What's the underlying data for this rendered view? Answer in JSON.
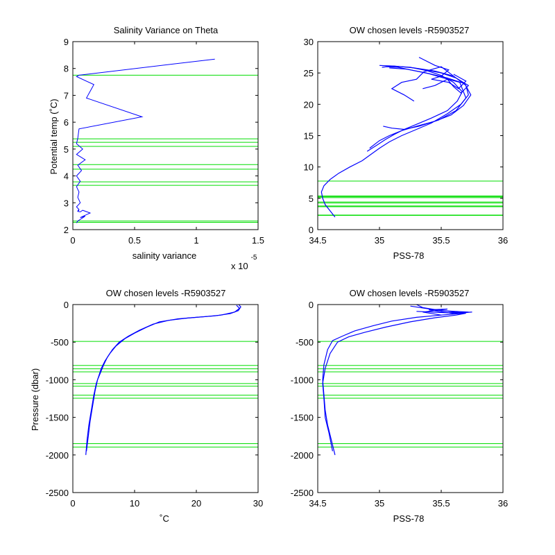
{
  "colors": {
    "profile": "#0000ff",
    "levels": "#00dd00",
    "axes": "#000000",
    "background": "#ffffff"
  },
  "chart_data": [
    {
      "id": "p1",
      "type": "line",
      "title": "Salinity Variance on Theta",
      "xlabel": "salinity variance",
      "ylabel": "Potential temp (˚C)",
      "xlim": [
        0,
        1.5
      ],
      "ylim": [
        2,
        9
      ],
      "xticks": [
        0,
        0.5,
        1,
        1.5
      ],
      "xtick_labels": [
        "0",
        "0.5",
        "1",
        "1.5"
      ],
      "yticks": [
        2,
        3,
        4,
        5,
        6,
        7,
        8,
        9
      ],
      "ytick_labels": [
        "2",
        "3",
        "4",
        "5",
        "6",
        "7",
        "8",
        "9"
      ],
      "x_multiplier_base": "x 10",
      "x_multiplier_exp": "-5",
      "hlines": [
        7.75,
        5.38,
        5.25,
        5.1,
        4.42,
        4.25,
        3.78,
        3.65,
        2.32,
        2.27
      ],
      "series": [
        {
          "x": [
            1.15,
            0.05,
            0.03,
            0.17,
            0.11,
            0.56,
            0.05,
            0.04,
            0.03,
            0.08,
            0.03,
            0.1,
            0.04,
            0.07,
            0.03,
            0.06,
            0.03,
            0.05,
            0.04,
            0.06,
            0.03,
            0.05,
            0.04,
            0.05,
            0.04,
            0.06,
            0.08,
            0.14,
            0.06,
            0.1,
            0.04,
            0.03
          ],
          "y": [
            8.35,
            7.75,
            7.7,
            7.4,
            6.9,
            6.2,
            5.75,
            5.4,
            5.2,
            5.0,
            4.8,
            4.6,
            4.4,
            4.2,
            4.0,
            3.8,
            3.6,
            3.4,
            3.2,
            3.0,
            2.85,
            2.75,
            2.7,
            2.72,
            2.68,
            2.66,
            2.72,
            2.62,
            2.45,
            2.5,
            2.32,
            2.25
          ]
        }
      ]
    },
    {
      "id": "p2",
      "type": "line",
      "title": "OW chosen levels -R5903527",
      "xlabel": "PSS-78",
      "ylabel": "",
      "xlim": [
        34.5,
        36
      ],
      "ylim": [
        0,
        30
      ],
      "xticks": [
        34.5,
        35,
        35.5,
        36
      ],
      "xtick_labels": [
        "34.5",
        "35",
        "35.5",
        "36"
      ],
      "yticks": [
        0,
        5,
        10,
        15,
        20,
        25,
        30
      ],
      "ytick_labels": [
        "0",
        "5",
        "10",
        "15",
        "20",
        "25",
        "30"
      ],
      "hlines": [
        7.75,
        5.38,
        5.25,
        5.1,
        4.42,
        4.25,
        3.78,
        3.65,
        2.32,
        2.27
      ],
      "series": [
        {
          "x": [
            34.64,
            34.6,
            34.56,
            34.54,
            34.53,
            34.55,
            34.6,
            34.67,
            34.76,
            34.86,
            34.93,
            35.0,
            35.08,
            35.18,
            35.3,
            35.42,
            35.55,
            35.66,
            35.72,
            35.7,
            35.6,
            35.45,
            35.28,
            35.12,
            35.0
          ],
          "y": [
            2.0,
            3.0,
            4.0,
            5.0,
            6.0,
            7.0,
            8.0,
            9.0,
            10.0,
            11.0,
            12.0,
            13.0,
            14.0,
            15.0,
            16.0,
            17.0,
            18.5,
            20.0,
            21.5,
            23.0,
            24.5,
            25.3,
            25.8,
            26.1,
            26.2
          ]
        },
        {
          "x": [
            34.9,
            34.98,
            35.05,
            35.12,
            35.2,
            35.3,
            35.42,
            35.55,
            35.63,
            35.67,
            35.6,
            35.5,
            35.38,
            35.25,
            35.1,
            35.02
          ],
          "y": [
            12.5,
            13.5,
            14.4,
            15.2,
            16.0,
            16.8,
            17.8,
            19.0,
            20.5,
            22.0,
            23.5,
            24.6,
            25.4,
            25.9,
            26.1,
            25.9
          ]
        },
        {
          "x": [
            34.92,
            35.0,
            35.08,
            35.18,
            35.3,
            35.45,
            35.58,
            35.68,
            35.74,
            35.69,
            35.55,
            35.4,
            35.25,
            35.15,
            35.05
          ],
          "y": [
            13.0,
            14.2,
            15.0,
            15.8,
            16.5,
            17.3,
            18.3,
            19.8,
            21.5,
            23.3,
            24.2,
            24.9,
            25.5,
            25.9,
            26.0
          ]
        },
        {
          "x": [
            35.03,
            35.1,
            35.2,
            35.32,
            35.48,
            35.62,
            35.7,
            35.65,
            35.52,
            35.38,
            35.22,
            35.08
          ],
          "y": [
            16.5,
            16.2,
            16.0,
            16.5,
            17.5,
            19.0,
            21.0,
            23.5,
            24.2,
            25.0,
            25.6,
            25.8
          ]
        },
        {
          "x": [
            35.28,
            35.2,
            35.1,
            35.18,
            35.3,
            35.36,
            35.5,
            35.6
          ],
          "y": [
            20.5,
            21.5,
            22.5,
            23.5,
            24.0,
            25.2,
            26.0,
            24.5
          ]
        },
        {
          "x": [
            35.32,
            35.45,
            35.56,
            35.5,
            35.42,
            35.56,
            35.64,
            35.7,
            35.6
          ],
          "y": [
            27.5,
            26.2,
            25.5,
            24.5,
            24.0,
            23.5,
            22.5,
            23.7,
            24.8
          ]
        },
        {
          "x": [
            35.35,
            35.45,
            35.55,
            35.6,
            35.66,
            35.72,
            35.62,
            35.5,
            35.4
          ],
          "y": [
            22.5,
            23.0,
            24.0,
            22.8,
            21.8,
            23.0,
            24.2,
            25.0,
            25.4
          ]
        }
      ]
    },
    {
      "id": "p3",
      "type": "line",
      "title": "OW chosen levels -R5903527",
      "xlabel": "˚C",
      "ylabel": "Pressure (dbar)",
      "xlim": [
        0,
        30
      ],
      "ylim": [
        -2500,
        0
      ],
      "xticks": [
        0,
        10,
        20,
        30
      ],
      "xtick_labels": [
        "0",
        "10",
        "20",
        "30"
      ],
      "yticks": [
        -2500,
        -2000,
        -1500,
        -1000,
        -500,
        0
      ],
      "ytick_labels": [
        "-2500",
        "-2000",
        "-1500",
        "-1000",
        "-500",
        "0"
      ],
      "hlines": [
        -490,
        -810,
        -855,
        -895,
        -1050,
        -1085,
        -1205,
        -1245,
        -1850,
        -1895
      ],
      "series": [
        {
          "x": [
            2.1,
            2.3,
            2.6,
            3.0,
            3.4,
            3.8,
            4.2,
            4.6,
            5.2,
            6.0,
            7.0,
            8.5,
            10.0,
            12.0,
            14.0,
            17.0,
            20.0,
            23.0,
            25.5,
            26.8,
            27.2,
            26.9
          ],
          "y": [
            -2000,
            -1800,
            -1600,
            -1400,
            -1200,
            -1050,
            -950,
            -850,
            -750,
            -650,
            -550,
            -450,
            -380,
            -300,
            -230,
            -190,
            -170,
            -150,
            -120,
            -80,
            -30,
            -5
          ]
        },
        {
          "x": [
            2.2,
            2.5,
            2.8,
            3.2,
            3.6,
            4.0,
            4.5,
            5.0,
            5.6,
            6.4,
            7.5,
            9.0,
            10.8,
            13.0,
            15.5,
            18.5,
            21.5,
            24.0,
            26.2,
            27.0,
            26.5
          ],
          "y": [
            -1950,
            -1750,
            -1550,
            -1350,
            -1150,
            -1000,
            -900,
            -800,
            -700,
            -600,
            -500,
            -420,
            -340,
            -260,
            -210,
            -180,
            -160,
            -140,
            -100,
            -50,
            -10
          ]
        }
      ]
    },
    {
      "id": "p4",
      "type": "line",
      "title": "OW chosen levels -R5903527",
      "xlabel": "PSS-78",
      "ylabel": "",
      "xlim": [
        34.5,
        36
      ],
      "ylim": [
        -2500,
        0
      ],
      "xticks": [
        34.5,
        35,
        35.5,
        36
      ],
      "xtick_labels": [
        "34.5",
        "35",
        "35.5",
        "36"
      ],
      "yticks": [
        -2500,
        -2000,
        -1500,
        -1000,
        -500,
        0
      ],
      "ytick_labels": [
        "-2500",
        "-2000",
        "-1500",
        "-1000",
        "-500",
        "0"
      ],
      "hlines": [
        -490,
        -810,
        -855,
        -895,
        -1050,
        -1085,
        -1205,
        -1245,
        -1850,
        -1895
      ],
      "series": [
        {
          "x": [
            34.64,
            34.61,
            34.58,
            34.56,
            34.55,
            34.54,
            34.55,
            34.58,
            34.62,
            34.7,
            34.8,
            34.95,
            35.1,
            35.3,
            35.5,
            35.65,
            35.72,
            35.5,
            35.35,
            35.3
          ],
          "y": [
            -2000,
            -1800,
            -1600,
            -1400,
            -1200,
            -1000,
            -800,
            -600,
            -480,
            -420,
            -350,
            -280,
            -220,
            -170,
            -140,
            -120,
            -100,
            -80,
            -40,
            0
          ]
        },
        {
          "x": [
            34.62,
            34.59,
            34.56,
            34.55,
            34.54,
            34.56,
            34.6,
            34.66,
            34.75,
            34.88,
            35.05,
            35.25,
            35.45,
            35.62,
            35.7,
            35.45,
            35.25
          ],
          "y": [
            -1950,
            -1700,
            -1500,
            -1250,
            -1050,
            -850,
            -650,
            -500,
            -430,
            -370,
            -300,
            -230,
            -175,
            -140,
            -115,
            -70,
            -20
          ]
        },
        {
          "x": [
            35.3,
            35.55,
            35.75,
            35.6,
            35.4,
            35.55,
            35.35,
            35.5
          ],
          "y": [
            -90,
            -110,
            -100,
            -120,
            -70,
            -60,
            -100,
            -140
          ]
        }
      ]
    }
  ]
}
